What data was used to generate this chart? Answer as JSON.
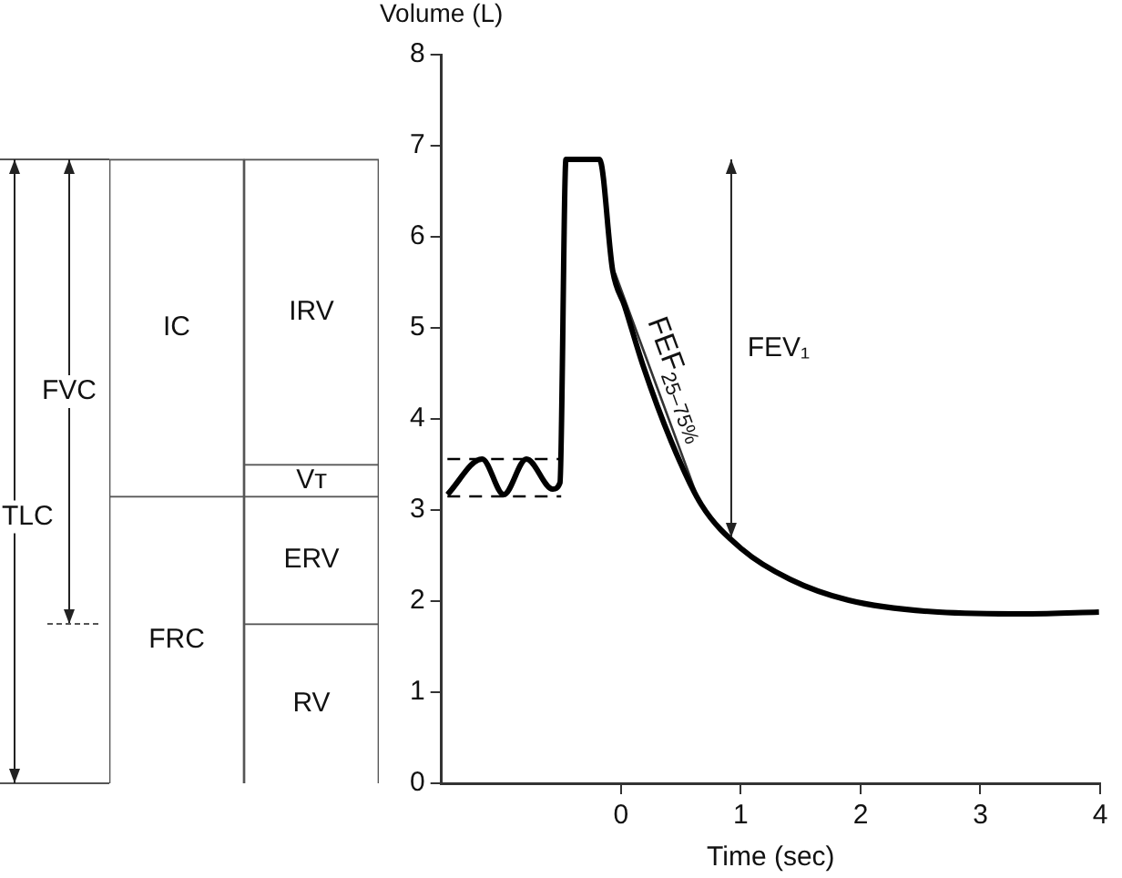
{
  "chart_data": [
    {
      "type": "bar",
      "stacked": true,
      "categories": [
        null,
        null
      ],
      "ylim": [
        0,
        8
      ],
      "tick_labels": false,
      "grid": false,
      "legend": false,
      "series": [
        {
          "name": "RV",
          "color": "#ffffff",
          "values": [
            null,
            1.75
          ]
        },
        {
          "name": "FRC",
          "color": "#ffffff",
          "values": [
            3.15,
            null
          ]
        },
        {
          "name": "ERV",
          "color": "#ffffff",
          "values": [
            null,
            1.4
          ]
        },
        {
          "name": "Vᴛ",
          "color": "#ffffff",
          "values": [
            null,
            0.35
          ]
        },
        {
          "name": "IC",
          "color": "#ffffff",
          "values": [
            3.7,
            null
          ]
        },
        {
          "name": "IRV",
          "color": "#ffffff",
          "values": [
            null,
            3.35
          ]
        }
      ],
      "annotations": [
        "TLC",
        "FVC"
      ]
    },
    {
      "type": "line",
      "ylabel": "Volume (L)",
      "xlabel": "Time (sec)",
      "xlim": [
        -1.5,
        4
      ],
      "xticks": [
        0,
        1,
        2,
        3,
        4
      ],
      "ylim": [
        0,
        8
      ],
      "yticks": [
        0,
        1,
        2,
        3,
        4,
        5,
        6,
        7,
        8
      ],
      "grid": false,
      "legend": false,
      "marker": "none",
      "series": [
        {
          "color": "#000000",
          "x": [
            -1.45,
            -1.16,
            -0.98,
            -0.79,
            -0.57,
            -0.51,
            -0.46,
            -0.18,
            -0.07,
            0.03,
            0.18,
            0.42,
            0.67,
            1.01,
            1.41,
            1.9,
            2.65,
            3.39,
            3.99
          ],
          "values": [
            3.17,
            3.56,
            3.17,
            3.56,
            3.23,
            3.3,
            6.85,
            6.85,
            5.63,
            5.24,
            4.6,
            3.75,
            3.06,
            2.57,
            2.24,
            2.01,
            1.88,
            1.86,
            1.88
          ]
        },
        {
          "color": "#000000",
          "line_style": "dashed",
          "x": [
            -1.45,
            -0.5
          ],
          "values": [
            3.56,
            3.56
          ]
        },
        {
          "color": "#000000",
          "line_style": "dashed",
          "x": [
            -1.45,
            -0.5
          ],
          "values": [
            3.15,
            3.15
          ]
        },
        {
          "color": "#333333",
          "x": [
            -0.05,
            0.65
          ],
          "values": [
            5.6,
            3.1
          ]
        }
      ],
      "annotations": [
        "FEV₁",
        "FEF$_{25–75%}$"
      ]
    }
  ]
}
